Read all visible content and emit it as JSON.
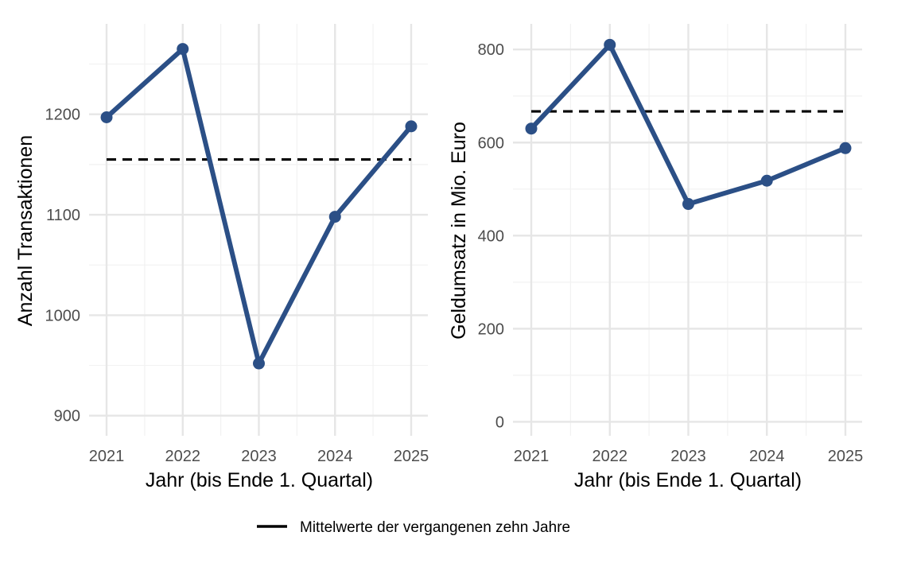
{
  "chart_data": [
    {
      "type": "line",
      "xlabel": "Jahr (bis Ende 1. Quartal)",
      "ylabel": "Anzahl Transaktionen",
      "x": [
        "2021",
        "2022",
        "2023",
        "2024",
        "2025"
      ],
      "series": [
        {
          "values": [
            1197,
            1265,
            952,
            1098,
            1188
          ]
        }
      ],
      "reference_line": {
        "value": 1155,
        "style": "dashed"
      },
      "ylim": [
        880,
        1290
      ],
      "yticks": [
        900,
        1000,
        1100,
        1200
      ],
      "grid": true
    },
    {
      "type": "line",
      "xlabel": "Jahr (bis Ende 1. Quartal)",
      "ylabel": "Geldumsatz in Mio. Euro",
      "x": [
        "2021",
        "2022",
        "2023",
        "2024",
        "2025"
      ],
      "series": [
        {
          "values": [
            630,
            810,
            468,
            518,
            588
          ]
        }
      ],
      "reference_line": {
        "value": 667,
        "style": "dashed"
      },
      "ylim": [
        -30,
        855
      ],
      "yticks": [
        0,
        200,
        400,
        600,
        800
      ],
      "grid": true
    }
  ],
  "legend": {
    "label": "Mittelwerte der vergangenen zehn Jahre",
    "position": "bottom"
  },
  "colors": {
    "series": "#2b4f86",
    "reference": "#000000",
    "grid_major": "#e6e6e6",
    "grid_minor": "#f2f2f2"
  }
}
